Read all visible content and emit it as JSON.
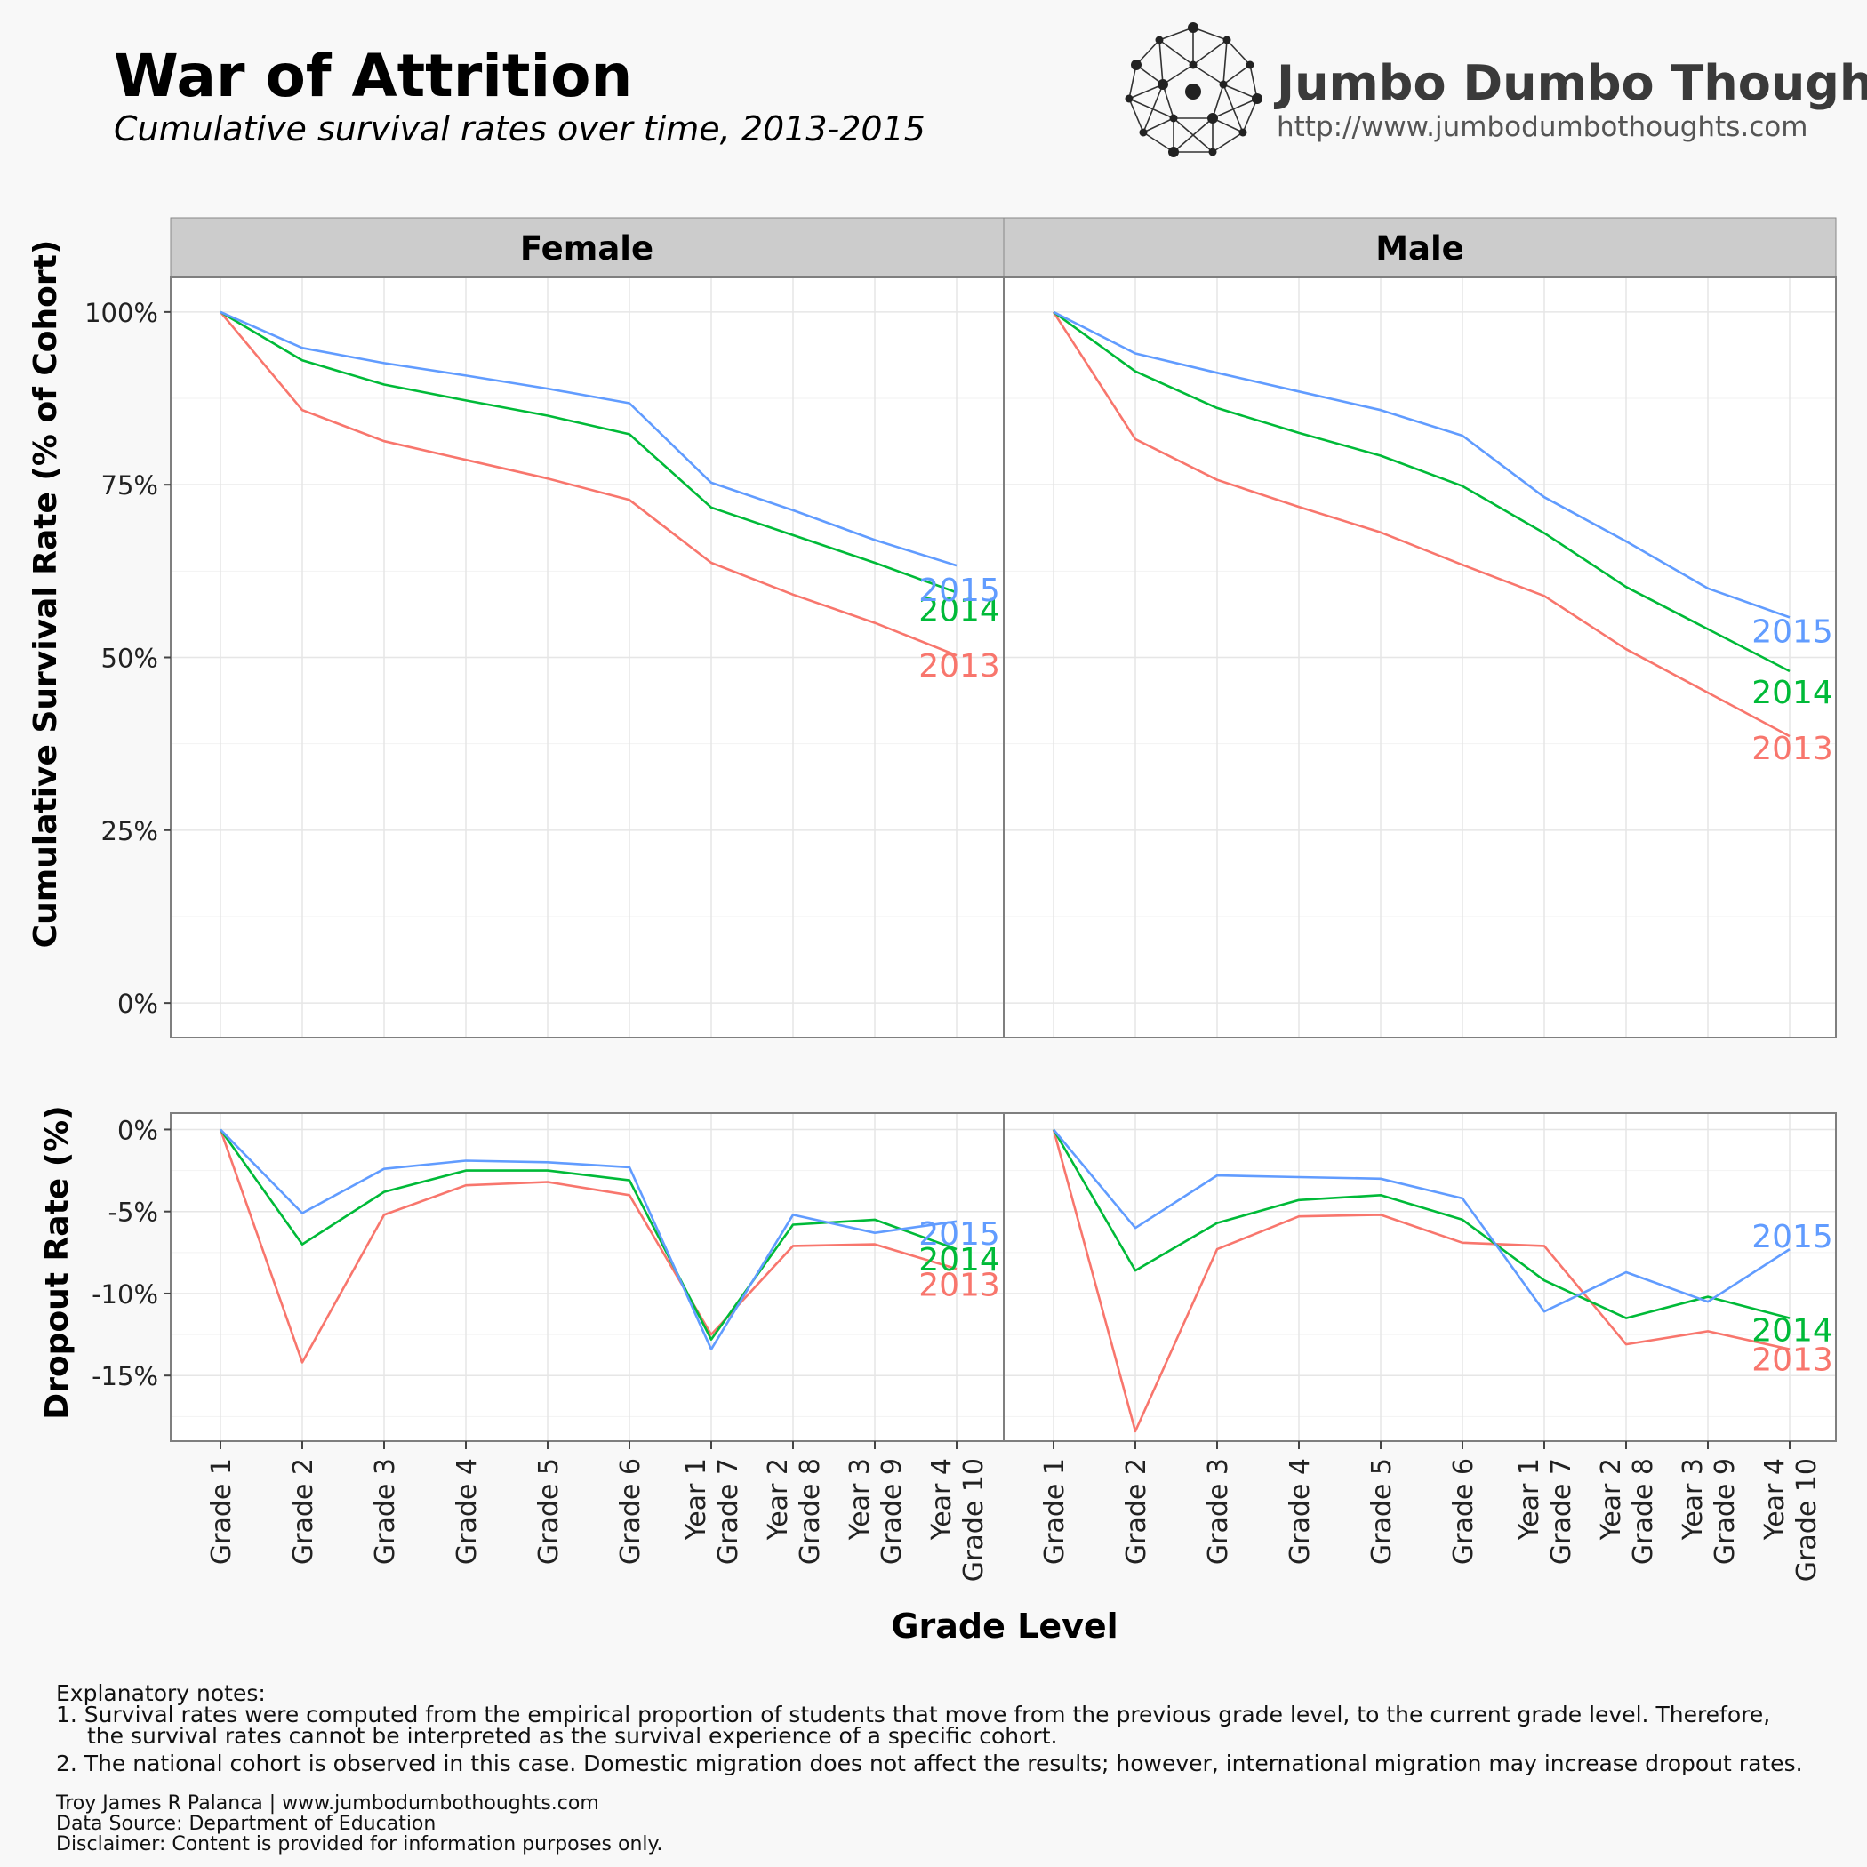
{
  "title": "War of Attrition",
  "subtitle": "Cumulative survival rates over time, 2013-2015",
  "brand": {
    "name": "Jumbo Dumbo Thoughts",
    "url": "http://www.jumbodumbothoughts.com"
  },
  "colors": {
    "2013": "#F8766D",
    "2014": "#00BA38",
    "2015": "#619CFF",
    "strip": "#cccccc",
    "grid": "#ebebeb"
  },
  "chart_data": {
    "type": "line",
    "categories": [
      "Grade 1",
      "Grade 2",
      "Grade 3",
      "Grade 4",
      "Grade 5",
      "Grade 6",
      "Year 1|Grade 7",
      "Year 2|Grade 8",
      "Year 3|Grade 9",
      "Year 4|Grade 10"
    ],
    "xlabel": "Grade Level",
    "panels": [
      "Female",
      "Male"
    ],
    "survival": {
      "ylabel": "Cumulative Survival Rate (% of Cohort)",
      "ylim": [
        -5,
        105
      ],
      "yticks": [
        0,
        25,
        50,
        75,
        100
      ],
      "ytick_labels": [
        "0%",
        "25%",
        "50%",
        "75%",
        "100%"
      ],
      "series": {
        "Female": [
          {
            "name": "2013",
            "values": [
              100,
              85.8,
              81.3,
              78.6,
              75.9,
              72.8,
              63.7,
              59.1,
              55.0,
              50.3
            ]
          },
          {
            "name": "2014",
            "values": [
              100,
              93.0,
              89.5,
              87.2,
              85.0,
              82.3,
              71.7,
              67.7,
              63.7,
              59.4
            ]
          },
          {
            "name": "2015",
            "values": [
              100,
              94.8,
              92.6,
              90.8,
              88.9,
              86.8,
              75.3,
              71.3,
              67.0,
              63.3
            ]
          }
        ],
        "Male": [
          {
            "name": "2013",
            "values": [
              100,
              81.6,
              75.7,
              71.8,
              68.1,
              63.4,
              58.9,
              51.2,
              44.9,
              38.6
            ]
          },
          {
            "name": "2014",
            "values": [
              100,
              91.4,
              86.1,
              82.5,
              79.2,
              74.8,
              68.0,
              60.2,
              54.1,
              48.0
            ]
          },
          {
            "name": "2015",
            "values": [
              100,
              94.0,
              91.2,
              88.5,
              85.8,
              82.1,
              73.2,
              66.8,
              60.0,
              55.8
            ]
          }
        ]
      }
    },
    "dropout": {
      "ylabel": "Dropout Rate (%)",
      "ylim": [
        -19,
        1
      ],
      "yticks": [
        0,
        -5,
        -10,
        -15
      ],
      "ytick_labels": [
        "0%",
        "-5%",
        "-10%",
        "-15%"
      ],
      "series": {
        "Female": [
          {
            "name": "2013",
            "values": [
              0,
              -14.2,
              -5.2,
              -3.4,
              -3.2,
              -4.0,
              -12.5,
              -7.1,
              -7.0,
              -8.5
            ]
          },
          {
            "name": "2014",
            "values": [
              0,
              -7.0,
              -3.8,
              -2.5,
              -2.5,
              -3.1,
              -12.8,
              -5.8,
              -5.5,
              -7.3
            ]
          },
          {
            "name": "2015",
            "values": [
              0,
              -5.1,
              -2.4,
              -1.9,
              -2.0,
              -2.3,
              -13.4,
              -5.2,
              -6.3,
              -5.6
            ]
          }
        ],
        "Male": [
          {
            "name": "2013",
            "values": [
              0,
              -18.4,
              -7.3,
              -5.3,
              -5.2,
              -6.9,
              -7.1,
              -13.1,
              -12.3,
              -13.4
            ]
          },
          {
            "name": "2014",
            "values": [
              0,
              -8.6,
              -5.7,
              -4.3,
              -4.0,
              -5.5,
              -9.2,
              -11.5,
              -10.2,
              -11.5
            ]
          },
          {
            "name": "2015",
            "values": [
              0,
              -6.0,
              -2.8,
              -2.9,
              -3.0,
              -4.2,
              -11.1,
              -8.7,
              -10.5,
              -7.3
            ]
          }
        ]
      }
    }
  },
  "notes": {
    "heading": "Explanatory notes:",
    "line1a": "1. Survival rates were computed from the empirical proportion of students that move from the previous grade level, to the current grade level. Therefore,",
    "line1b": "the survival rates cannot be interpreted as  the survival experience of a specific cohort.",
    "line2": "2. The national cohort is observed in this case. Domestic migration does not affect the results; however, international migration may increase dropout rates."
  },
  "credits": {
    "author": "Troy James R Palanca | www.jumbodumbothoughts.com",
    "source": "Data Source: Department of Education",
    "disclaimer": "Disclaimer: Content is provided for information purposes only."
  }
}
